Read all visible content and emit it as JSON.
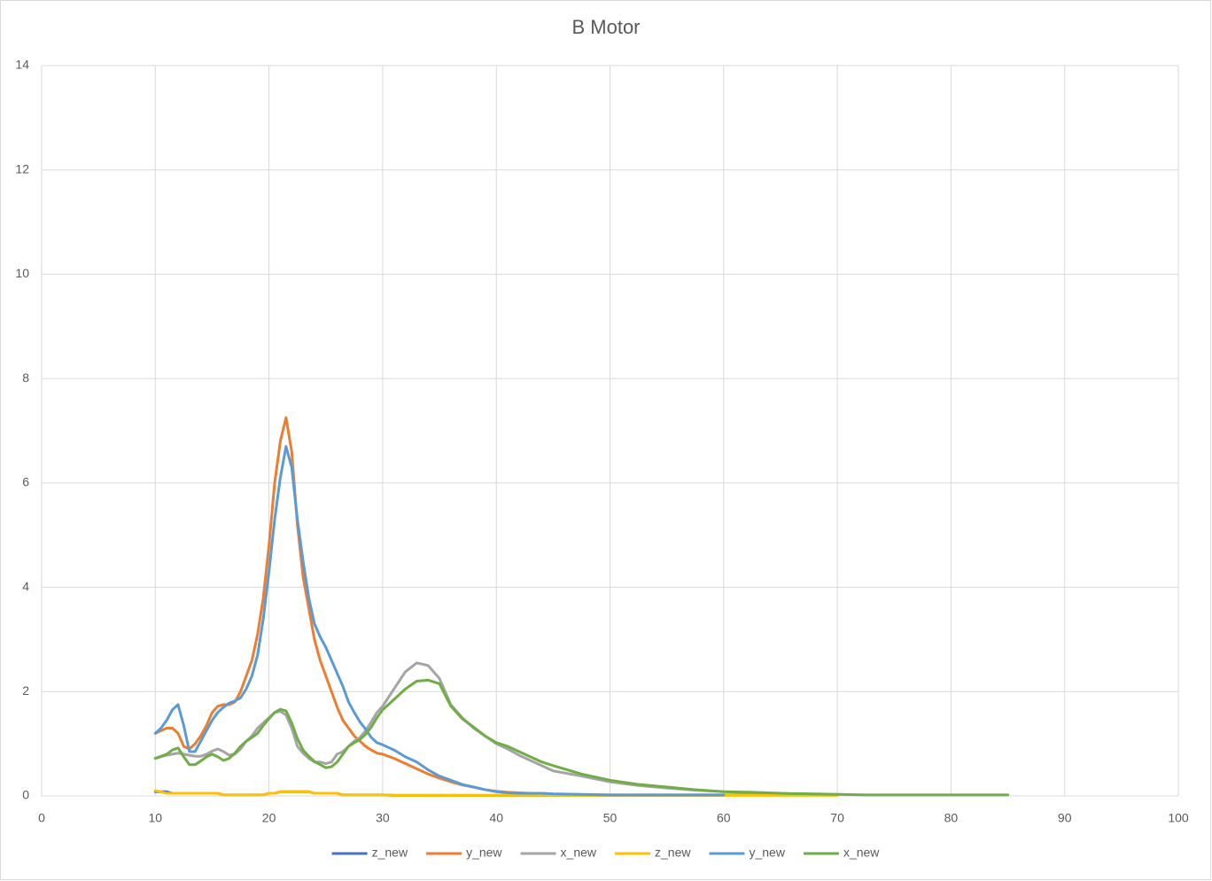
{
  "chart_data": {
    "type": "line",
    "title": "B Motor",
    "x": [
      10,
      10.5,
      11,
      11.5,
      12,
      12.5,
      13,
      13.5,
      14,
      14.5,
      15,
      15.5,
      16,
      16.5,
      17,
      17.5,
      18,
      18.5,
      19,
      19.5,
      20,
      20.5,
      21,
      21.5,
      22,
      22.5,
      23,
      23.5,
      24,
      24.5,
      25,
      25.5,
      26,
      26.5,
      27,
      27.5,
      28,
      28.5,
      29,
      29.5,
      30,
      31,
      32,
      33,
      34,
      35,
      36,
      37,
      38,
      39,
      40,
      41,
      42,
      43,
      44,
      45,
      47.5,
      50,
      52.5,
      55,
      57.5,
      60,
      62.5,
      65,
      67.5,
      70,
      72.5,
      75,
      77.5,
      80,
      82.5,
      85
    ],
    "series": [
      {
        "name": "z_new",
        "color": "#4472c4",
        "values": [
          0.08,
          0.08,
          0.08,
          0.05,
          0.05,
          0.05,
          0.05,
          0.05,
          0.05,
          0.05,
          0.05,
          0.05,
          0.02,
          0.02,
          0.02,
          0.02,
          0.02,
          0.02,
          0.02,
          0.02,
          0.05,
          0.05,
          0.08,
          0.08,
          0.08,
          0.08,
          0.08,
          0.08,
          0.05,
          0.05,
          0.05,
          0.05,
          0.05,
          0.02,
          0.02,
          0.02,
          0.02,
          0.02,
          0.02,
          0.02,
          0.02,
          0.01,
          0.01,
          0.01,
          0.01,
          0.01,
          0.01,
          0.01,
          0.01,
          0.01,
          0.01,
          0.01,
          0.01,
          0.01,
          0.01,
          0.01,
          0.01,
          0.01,
          0.01,
          0.01,
          0.01,
          0.01,
          null,
          null,
          null,
          null,
          null,
          null,
          null,
          null,
          null,
          null
        ]
      },
      {
        "name": "y_new",
        "color": "#ed7d31",
        "values": [
          1.2,
          1.25,
          1.3,
          1.3,
          1.2,
          0.95,
          0.9,
          1.0,
          1.15,
          1.35,
          1.6,
          1.72,
          1.75,
          1.75,
          1.8,
          2.0,
          2.3,
          2.6,
          3.1,
          3.8,
          4.8,
          6.0,
          6.8,
          7.25,
          6.6,
          5.2,
          4.2,
          3.6,
          3.0,
          2.6,
          2.3,
          2.0,
          1.7,
          1.45,
          1.3,
          1.15,
          1.05,
          0.95,
          0.88,
          0.82,
          0.8,
          0.72,
          0.62,
          0.52,
          0.42,
          0.34,
          0.27,
          0.21,
          0.17,
          0.12,
          0.09,
          0.07,
          0.06,
          0.05,
          0.04,
          0.03,
          0.02,
          0.02,
          0.02,
          0.02,
          0.02,
          0.02,
          0.02,
          0.02,
          0.02,
          0.02,
          null,
          null,
          null,
          null,
          null,
          null
        ]
      },
      {
        "name": "x_new",
        "color": "#a5a5a5",
        "values": [
          0.72,
          0.75,
          0.78,
          0.8,
          0.82,
          0.8,
          0.78,
          0.76,
          0.76,
          0.8,
          0.86,
          0.9,
          0.85,
          0.78,
          0.8,
          0.9,
          1.05,
          1.15,
          1.3,
          1.4,
          1.5,
          1.6,
          1.62,
          1.55,
          1.3,
          0.95,
          0.82,
          0.72,
          0.65,
          0.65,
          0.62,
          0.65,
          0.8,
          0.85,
          0.95,
          1.05,
          1.12,
          1.25,
          1.42,
          1.6,
          1.72,
          2.05,
          2.38,
          2.55,
          2.5,
          2.25,
          1.75,
          1.5,
          1.3,
          1.15,
          1.0,
          0.9,
          0.78,
          0.68,
          0.58,
          0.48,
          0.38,
          0.27,
          0.2,
          0.15,
          0.11,
          0.08,
          0.06,
          0.04,
          0.03,
          0.02,
          null,
          null,
          null,
          null,
          null,
          null
        ]
      },
      {
        "name": "z_new",
        "color": "#ffc000",
        "values": [
          0.1,
          0.08,
          0.05,
          0.05,
          0.05,
          0.05,
          0.05,
          0.05,
          0.05,
          0.05,
          0.05,
          0.05,
          0.02,
          0.02,
          0.02,
          0.02,
          0.02,
          0.02,
          0.02,
          0.02,
          0.05,
          0.05,
          0.08,
          0.08,
          0.08,
          0.08,
          0.08,
          0.08,
          0.05,
          0.05,
          0.05,
          0.05,
          0.05,
          0.02,
          0.02,
          0.02,
          0.02,
          0.02,
          0.02,
          0.02,
          0.02,
          0.01,
          0.01,
          0.01,
          0.01,
          0.01,
          0.01,
          0.01,
          0.01,
          0.01,
          0.01,
          0.01,
          0.01,
          0.01,
          0.01,
          0.01,
          0.01,
          0.01,
          0.01,
          0.01,
          0.01,
          0.01,
          0.01,
          0.01,
          0.01,
          0.01,
          null,
          null,
          null,
          null,
          null,
          null
        ]
      },
      {
        "name": "y_new",
        "color": "#5b9bd5",
        "values": [
          1.2,
          1.3,
          1.45,
          1.65,
          1.75,
          1.35,
          0.85,
          0.85,
          1.05,
          1.25,
          1.45,
          1.6,
          1.7,
          1.78,
          1.82,
          1.88,
          2.05,
          2.3,
          2.7,
          3.4,
          4.3,
          5.3,
          6.1,
          6.7,
          6.3,
          5.3,
          4.5,
          3.8,
          3.3,
          3.05,
          2.85,
          2.6,
          2.35,
          2.1,
          1.8,
          1.6,
          1.42,
          1.28,
          1.12,
          1.02,
          0.98,
          0.88,
          0.75,
          0.65,
          0.5,
          0.38,
          0.3,
          0.22,
          0.17,
          0.12,
          0.08,
          0.06,
          0.05,
          0.05,
          0.05,
          0.04,
          0.03,
          0.02,
          0.02,
          0.02,
          0.02,
          0.02,
          null,
          null,
          null,
          null,
          null,
          null,
          null,
          null,
          null,
          null
        ]
      },
      {
        "name": "x_new",
        "color": "#70ad47",
        "values": [
          0.72,
          0.76,
          0.8,
          0.88,
          0.92,
          0.75,
          0.6,
          0.6,
          0.67,
          0.75,
          0.8,
          0.75,
          0.68,
          0.72,
          0.82,
          0.95,
          1.05,
          1.12,
          1.2,
          1.35,
          1.48,
          1.6,
          1.66,
          1.63,
          1.4,
          1.1,
          0.88,
          0.76,
          0.66,
          0.6,
          0.54,
          0.56,
          0.65,
          0.8,
          0.95,
          1.02,
          1.08,
          1.18,
          1.32,
          1.5,
          1.65,
          1.85,
          2.05,
          2.2,
          2.22,
          2.15,
          1.72,
          1.48,
          1.32,
          1.15,
          1.02,
          0.95,
          0.85,
          0.75,
          0.65,
          0.58,
          0.42,
          0.3,
          0.22,
          0.17,
          0.12,
          0.08,
          0.07,
          0.05,
          0.04,
          0.03,
          0.02,
          0.02,
          0.02,
          0.02,
          0.02,
          0.02
        ]
      }
    ],
    "xlim": [
      0,
      100
    ],
    "xticks": [
      0,
      10,
      20,
      30,
      40,
      50,
      60,
      70,
      80,
      90,
      100
    ],
    "ylim": [
      0,
      14
    ],
    "yticks": [
      0,
      2,
      4,
      6,
      8,
      10,
      12,
      14
    ],
    "grid": true,
    "legend": "bottom"
  }
}
